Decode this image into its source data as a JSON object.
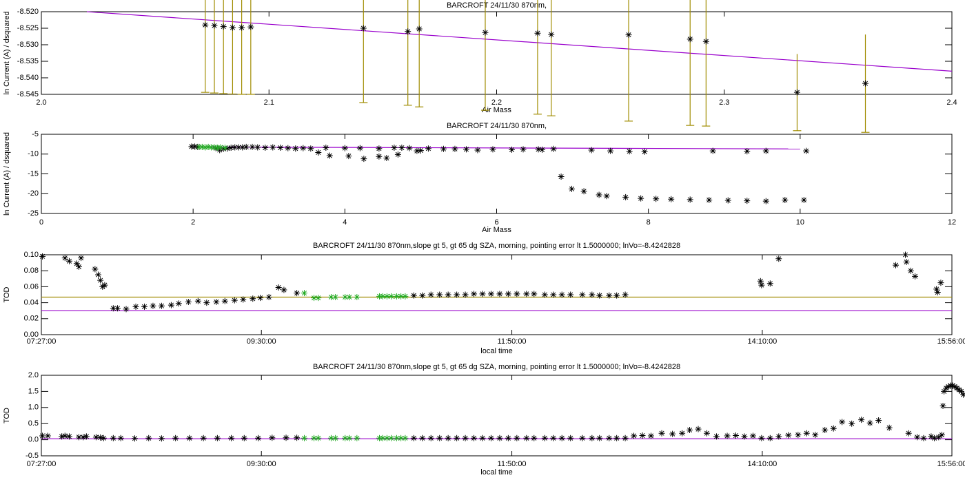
{
  "chart_data": [
    {
      "type": "scatter",
      "title": "BARCROFT 24/11/30 870nm,",
      "xlabel": "Air Mass",
      "ylabel": "ln Current (A) / dsquared",
      "xlim": [
        2.0,
        2.4
      ],
      "ylim": [
        -8.545,
        -8.52
      ],
      "xticks": [
        {
          "value": 2.0,
          "label": "2.0"
        },
        2.1,
        2.2,
        2.3,
        2.4
      ],
      "yticks": [
        {
          "value": -8.545,
          "label": "-8.545"
        },
        {
          "value": -8.54,
          "label": "-8.540"
        },
        {
          "value": -8.535,
          "label": "-8.535"
        },
        {
          "value": -8.53,
          "label": "-8.530"
        },
        {
          "value": -8.525,
          "label": "-8.525"
        },
        {
          "value": -8.52,
          "label": "-8.520"
        }
      ],
      "error_color": "#a08c00",
      "series": [
        {
          "color": "#000000",
          "x": [
            2.072,
            2.076,
            2.08,
            2.084,
            2.088,
            2.092,
            2.1415,
            2.161,
            2.166,
            2.195,
            2.218,
            2.224,
            2.258,
            2.285,
            2.292,
            2.332,
            2.362
          ],
          "y": [
            -8.524,
            -8.5242,
            -8.5245,
            -8.5248,
            -8.5248,
            -8.5246,
            -8.525,
            -8.526,
            -8.5252,
            -8.5263,
            -8.5265,
            -8.5269,
            -8.527,
            -8.5283,
            -8.529,
            -8.5444,
            -8.5417
          ],
          "yerr": [
            0.0204,
            0.0204,
            0.0203,
            0.0201,
            0.0202,
            0.0204,
            0.0225,
            0.0223,
            0.0236,
            0.0235,
            0.0245,
            0.0246,
            0.0261,
            0.0261,
            0.0256,
            0.0116,
            0.0148
          ]
        }
      ],
      "lines": [
        {
          "color": "#9900cc",
          "x": [
            2.02,
            2.4
          ],
          "y": [
            -8.52,
            -8.538
          ]
        }
      ]
    },
    {
      "type": "scatter",
      "title": "BARCROFT 24/11/30 870nm,",
      "xlabel": "Air Mass",
      "ylabel": "ln Current (A) / dsquared",
      "xlim": [
        0,
        12
      ],
      "ylim": [
        -25,
        -5
      ],
      "xticks": [
        0,
        2,
        4,
        6,
        8,
        10,
        12
      ],
      "yticks": [
        -25,
        -20,
        -15,
        -10,
        -5
      ],
      "series": [
        {
          "color": "#000000",
          "x": [
            1.98,
            2.02,
            2.06,
            2.3,
            2.35,
            2.4,
            2.45,
            2.5,
            2.55,
            2.6,
            2.65,
            2.7,
            2.78,
            2.85,
            2.95,
            3.05,
            3.15,
            3.25,
            3.35,
            3.45,
            3.55,
            3.65,
            3.75,
            3.8,
            4.0,
            4.05,
            4.2,
            4.25,
            4.45,
            4.45,
            4.55,
            4.65,
            4.7,
            4.75,
            4.85,
            4.95,
            5.0,
            5.1,
            5.3,
            5.45,
            5.6,
            5.75,
            5.95,
            6.2,
            6.35,
            6.55,
            6.6,
            6.75,
            6.85,
            6.99,
            7.15,
            7.25,
            7.35,
            7.45,
            7.5,
            7.7,
            7.75,
            7.9,
            7.95,
            8.1,
            8.3,
            8.55,
            8.8,
            8.85,
            9.05,
            9.3,
            9.3,
            9.55,
            9.55,
            9.8,
            10.05,
            10.08
          ],
          "y": [
            -8.1,
            -8.1,
            -8.2,
            -8.5,
            -9.0,
            -8.7,
            -8.6,
            -8.4,
            -8.3,
            -8.3,
            -8.3,
            -8.2,
            -8.2,
            -8.3,
            -8.4,
            -8.3,
            -8.4,
            -8.5,
            -8.6,
            -8.5,
            -8.6,
            -9.6,
            -8.4,
            -10.4,
            -8.5,
            -10.5,
            -8.5,
            -11.2,
            -8.6,
            -10.6,
            -11.0,
            -8.4,
            -10.1,
            -8.4,
            -8.5,
            -9.2,
            -9.1,
            -8.6,
            -8.7,
            -8.7,
            -8.8,
            -9.0,
            -8.8,
            -8.9,
            -8.8,
            -8.8,
            -8.9,
            -8.7,
            -15.7,
            -18.8,
            -19.4,
            -9.0,
            -20.3,
            -20.6,
            -9.2,
            -20.9,
            -9.3,
            -21.2,
            -9.4,
            -21.3,
            -21.4,
            -21.5,
            -21.6,
            -9.2,
            -21.7,
            -21.8,
            -9.3,
            -21.9,
            -9.2,
            -21.6,
            -21.6,
            -9.2
          ]
        },
        {
          "color": "#22aa22",
          "x": [
            2.08,
            2.12,
            2.16,
            2.2,
            2.24,
            2.28,
            2.32,
            2.36,
            2.42
          ],
          "y": [
            -8.2,
            -8.2,
            -8.3,
            -8.2,
            -8.3,
            -8.3,
            -8.4,
            -8.3,
            -8.4
          ]
        }
      ],
      "lines": [
        {
          "color": "#9900cc",
          "x": [
            2.0,
            10.0
          ],
          "y": [
            -8.2,
            -8.7
          ]
        }
      ]
    },
    {
      "type": "scatter",
      "title": "BARCROFT 24/11/30 870nm,slope gt 5, gt 65 dg SZA, morning, pointing error lt 1.5000000; lnVo=-8.4242828",
      "xlabel": "local time",
      "ylabel": "TOD",
      "xlim": [
        7.45,
        15.9333
      ],
      "ylim": [
        0,
        0.1
      ],
      "xticks": [
        {
          "value": 7.45,
          "label": "07:27:00"
        },
        {
          "value": 9.5,
          "label": "09:30:00"
        },
        {
          "value": 11.8333,
          "label": "11:50:00"
        },
        {
          "value": 14.1667,
          "label": "14:10:00"
        },
        {
          "value": 15.9333,
          "label": "15:56:00"
        }
      ],
      "yticks": [
        {
          "value": 0,
          "label": "0.00"
        },
        {
          "value": 0.02,
          "label": "0.02"
        },
        {
          "value": 0.04,
          "label": "0.04"
        },
        {
          "value": 0.06,
          "label": "0.06"
        },
        {
          "value": 0.08,
          "label": "0.08"
        },
        {
          "value": 0.1,
          "label": "0.10"
        }
      ],
      "series": [
        {
          "color": "#000000",
          "x": [
            7.46,
            7.67,
            7.71,
            7.78,
            7.8,
            7.82,
            7.95,
            7.98,
            8.0,
            8.02,
            8.04,
            8.12,
            8.16,
            8.24,
            8.33,
            8.41,
            8.49,
            8.57,
            8.66,
            8.73,
            8.82,
            8.91,
            8.99,
            9.08,
            9.16,
            9.25,
            9.33,
            9.42,
            9.49,
            9.57,
            9.66,
            9.71,
            9.83,
            10.92,
            11.0,
            11.08,
            11.16,
            11.24,
            11.32,
            11.4,
            11.48,
            11.56,
            11.64,
            11.72,
            11.8,
            11.88,
            11.97,
            12.04,
            12.14,
            12.22,
            12.3,
            12.38,
            12.49,
            12.58,
            12.65,
            12.74,
            12.81,
            12.89,
            14.15,
            14.16,
            14.24,
            14.32,
            15.41,
            15.5,
            15.51,
            15.55,
            15.59,
            15.79,
            15.8,
            15.83
          ],
          "y": [
            0.098,
            0.096,
            0.092,
            0.089,
            0.085,
            0.096,
            0.082,
            0.075,
            0.068,
            0.06,
            0.062,
            0.033,
            0.033,
            0.032,
            0.035,
            0.035,
            0.036,
            0.036,
            0.037,
            0.039,
            0.041,
            0.042,
            0.04,
            0.041,
            0.042,
            0.043,
            0.044,
            0.045,
            0.046,
            0.047,
            0.059,
            0.056,
            0.052,
            0.049,
            0.049,
            0.05,
            0.05,
            0.05,
            0.05,
            0.05,
            0.051,
            0.051,
            0.051,
            0.051,
            0.051,
            0.051,
            0.051,
            0.051,
            0.05,
            0.05,
            0.05,
            0.05,
            0.05,
            0.05,
            0.049,
            0.049,
            0.049,
            0.05,
            0.067,
            0.062,
            0.064,
            0.095,
            0.087,
            0.1,
            0.091,
            0.08,
            0.073,
            0.057,
            0.053,
            0.065
          ]
        },
        {
          "color": "#22aa22",
          "x": [
            9.9,
            9.99,
            10.03,
            10.15,
            10.19,
            10.28,
            10.32,
            10.39,
            10.6,
            10.63,
            10.67,
            10.71,
            10.76,
            10.8,
            10.84
          ],
          "y": [
            0.052,
            0.046,
            0.046,
            0.047,
            0.047,
            0.047,
            0.047,
            0.047,
            0.048,
            0.048,
            0.048,
            0.048,
            0.048,
            0.048,
            0.048
          ]
        }
      ],
      "hlines": [
        {
          "value": 0.047,
          "color": "#a08c00"
        },
        {
          "value": 0.03,
          "color": "#9900cc"
        }
      ]
    },
    {
      "type": "scatter",
      "title": "BARCROFT 24/11/30 870nm,slope gt 5, gt 65 dg SZA, morning, pointing error lt 1.5000000; lnVo=-8.4242828",
      "xlabel": "local time",
      "ylabel": "TOD",
      "xlim": [
        7.45,
        15.9333
      ],
      "ylim": [
        -0.5,
        2.0
      ],
      "xticks": [
        {
          "value": 7.45,
          "label": "07:27:00"
        },
        {
          "value": 9.5,
          "label": "09:30:00"
        },
        {
          "value": 11.8333,
          "label": "11:50:00"
        },
        {
          "value": 14.1667,
          "label": "14:10:00"
        },
        {
          "value": 15.9333,
          "label": "15:56:00"
        }
      ],
      "yticks": [
        -0.5,
        {
          "value": 0,
          "label": "0.0"
        },
        0.5,
        {
          "value": 1,
          "label": "1.0"
        },
        1.5,
        {
          "value": 2,
          "label": "2.0"
        }
      ],
      "series": [
        {
          "color": "#000000",
          "x": [
            7.46,
            7.51,
            7.64,
            7.67,
            7.71,
            7.8,
            7.84,
            7.87,
            7.96,
            8.0,
            8.03,
            8.12,
            8.19,
            8.32,
            8.45,
            8.57,
            8.7,
            8.83,
            8.96,
            9.09,
            9.22,
            9.34,
            9.47,
            9.6,
            9.73,
            9.83,
            10.92,
            11.0,
            11.08,
            11.16,
            11.24,
            11.32,
            11.4,
            11.48,
            11.56,
            11.64,
            11.72,
            11.8,
            11.88,
            11.97,
            12.04,
            12.14,
            12.22,
            12.3,
            12.38,
            12.49,
            12.58,
            12.65,
            12.74,
            12.81,
            12.89,
            12.97,
            13.05,
            13.13,
            13.23,
            13.33,
            13.42,
            13.49,
            13.57,
            13.65,
            13.74,
            13.84,
            13.92,
            14.0,
            14.08,
            14.16,
            14.24,
            14.32,
            14.41,
            14.5,
            14.58,
            14.66,
            14.75,
            14.83,
            14.91,
            15.0,
            15.09,
            15.17,
            15.25,
            15.35,
            15.53,
            15.61,
            15.67,
            15.74,
            15.77,
            15.81,
            15.84,
            15.85,
            15.86,
            15.88,
            15.9,
            15.92,
            15.94,
            15.96,
            15.98,
            16.0,
            16.02,
            16.04
          ],
          "y": [
            0.12,
            0.12,
            0.1,
            0.12,
            0.1,
            0.08,
            0.08,
            0.1,
            0.08,
            0.07,
            0.05,
            0.05,
            0.05,
            0.04,
            0.05,
            0.04,
            0.05,
            0.05,
            0.05,
            0.05,
            0.05,
            0.05,
            0.05,
            0.06,
            0.06,
            0.06,
            0.05,
            0.05,
            0.05,
            0.05,
            0.05,
            0.05,
            0.05,
            0.05,
            0.05,
            0.05,
            0.05,
            0.05,
            0.05,
            0.05,
            0.05,
            0.05,
            0.05,
            0.05,
            0.05,
            0.05,
            0.05,
            0.05,
            0.05,
            0.05,
            0.05,
            0.12,
            0.13,
            0.12,
            0.2,
            0.18,
            0.2,
            0.3,
            0.33,
            0.2,
            0.1,
            0.12,
            0.13,
            0.1,
            0.12,
            0.05,
            0.05,
            0.1,
            0.14,
            0.15,
            0.2,
            0.15,
            0.3,
            0.35,
            0.55,
            0.5,
            0.62,
            0.52,
            0.6,
            0.37,
            0.2,
            0.08,
            0.05,
            0.1,
            0.05,
            0.08,
            0.15,
            1.05,
            1.5,
            1.6,
            1.65,
            1.68,
            1.68,
            1.65,
            1.6,
            1.55,
            1.5,
            1.4
          ]
        },
        {
          "color": "#22aa22",
          "x": [
            9.9,
            9.99,
            10.03,
            10.15,
            10.19,
            10.28,
            10.32,
            10.39,
            10.6,
            10.63,
            10.67,
            10.71,
            10.76,
            10.8,
            10.84
          ],
          "y": [
            0.05,
            0.05,
            0.05,
            0.05,
            0.05,
            0.05,
            0.05,
            0.05,
            0.05,
            0.05,
            0.05,
            0.05,
            0.05,
            0.05,
            0.05
          ]
        }
      ],
      "hlines": [
        {
          "value": 0.03,
          "color": "#9900cc"
        }
      ]
    }
  ]
}
